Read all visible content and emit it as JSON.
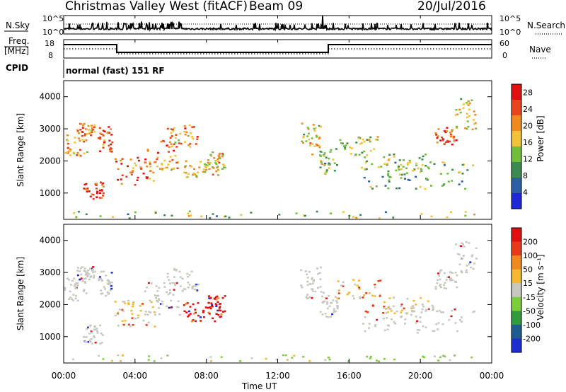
{
  "header": {
    "station": "Christmas Valley West (fitACF)",
    "beam": "Beam 09",
    "date": "20/Jul/2016"
  },
  "noise_panel": {
    "left_label": "N.Sky",
    "right_label": "N.Search",
    "left_ticks": [
      "10^5",
      "10^0"
    ],
    "right_ticks": [
      "10^5",
      "10^0"
    ]
  },
  "freq_panel": {
    "left_label_1": "Freq.",
    "left_label_2": "[MHz]",
    "right_label": "Nave",
    "left_ticks": [
      "18",
      "8"
    ],
    "right_ticks": [
      "60",
      "0"
    ]
  },
  "cpid": {
    "label": "CPID",
    "value": "normal (fast) 151 RF"
  },
  "colors": {
    "power": [
      "#1f28d8",
      "#2a5fa8",
      "#3b8a4e",
      "#6fbf3a",
      "#f2c23a",
      "#f08a1f",
      "#e8461a",
      "#e01010"
    ],
    "velocity": [
      "#1a2ed1",
      "#1f5c8f",
      "#2f9d3c",
      "#7ccf3a",
      "#c8c8c0",
      "#f5b830",
      "#f08a1f",
      "#e83a18",
      "#e01010"
    ]
  },
  "chart_data": [
    {
      "type": "heatmap",
      "title": "",
      "xlabel": "",
      "ylabel": "Slant Range [km]",
      "x_ticks": [
        "00:00",
        "04:00",
        "08:00",
        "12:00",
        "16:00",
        "20:00",
        "00:00"
      ],
      "x_range_hours": [
        0,
        24
      ],
      "y_ticks": [
        1000,
        2000,
        3000,
        4000
      ],
      "ylim": [
        180,
        4500
      ],
      "colorbar": {
        "label": "Power [dB]",
        "ticks": [
          4,
          8,
          12,
          16,
          20,
          24,
          28
        ],
        "range": [
          0,
          30
        ]
      }
    },
    {
      "type": "heatmap",
      "title": "",
      "xlabel": "Time UT",
      "ylabel": "Slant Range [km]",
      "x_ticks": [
        "00:00",
        "04:00",
        "08:00",
        "12:00",
        "16:00",
        "20:00",
        "00:00"
      ],
      "x_range_hours": [
        0,
        24
      ],
      "y_ticks": [
        1000,
        2000,
        3000,
        4000
      ],
      "ylim": [
        180,
        4500
      ],
      "colorbar": {
        "label": "Velocity [m s⁻¹]",
        "ticks": [
          200,
          100,
          50,
          15,
          -15,
          -50,
          -100,
          -200
        ]
      }
    }
  ]
}
